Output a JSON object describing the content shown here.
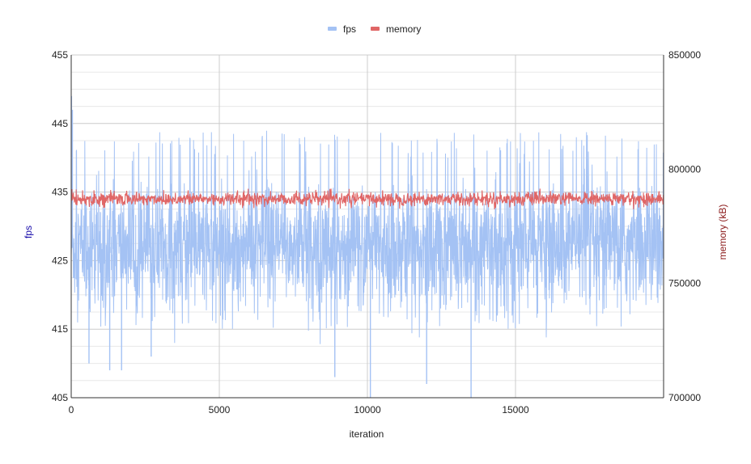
{
  "chart_data": {
    "type": "line",
    "title": "",
    "xlabel": "iteration",
    "ylabel_left": "fps",
    "ylabel_right": "memory (kB)",
    "xlim": [
      0,
      20000
    ],
    "ylim_left": [
      405,
      455
    ],
    "ylim_right": [
      700000,
      850000
    ],
    "x_ticks": [
      "0",
      "5000",
      "10000",
      "15000"
    ],
    "y_ticks_left": [
      "405",
      "415",
      "425",
      "435",
      "445",
      "455"
    ],
    "y_ticks_right": [
      "700000",
      "750000",
      "800000",
      "850000"
    ],
    "grid": true,
    "legend_position": "top-center",
    "series": [
      {
        "name": "fps",
        "axis": "left",
        "color": "#a4c2f4",
        "x_range": [
          0,
          20000
        ],
        "typical_band": [
          420,
          440
        ],
        "typical_mean": 427,
        "extremes": [
          {
            "x": 10,
            "y": 449
          },
          {
            "x": 40,
            "y": 447
          },
          {
            "x": 600,
            "y": 410
          },
          {
            "x": 1300,
            "y": 409
          },
          {
            "x": 1700,
            "y": 409
          },
          {
            "x": 2700,
            "y": 411
          },
          {
            "x": 8900,
            "y": 408
          },
          {
            "x": 10100,
            "y": 405
          },
          {
            "x": 12000,
            "y": 407
          },
          {
            "x": 13500,
            "y": 405
          }
        ]
      },
      {
        "name": "memory",
        "axis": "right",
        "color": "#e06666",
        "x_range": [
          0,
          20000
        ],
        "typical_band": [
          784000,
          790000
        ],
        "typical_mean": 787000
      }
    ]
  }
}
